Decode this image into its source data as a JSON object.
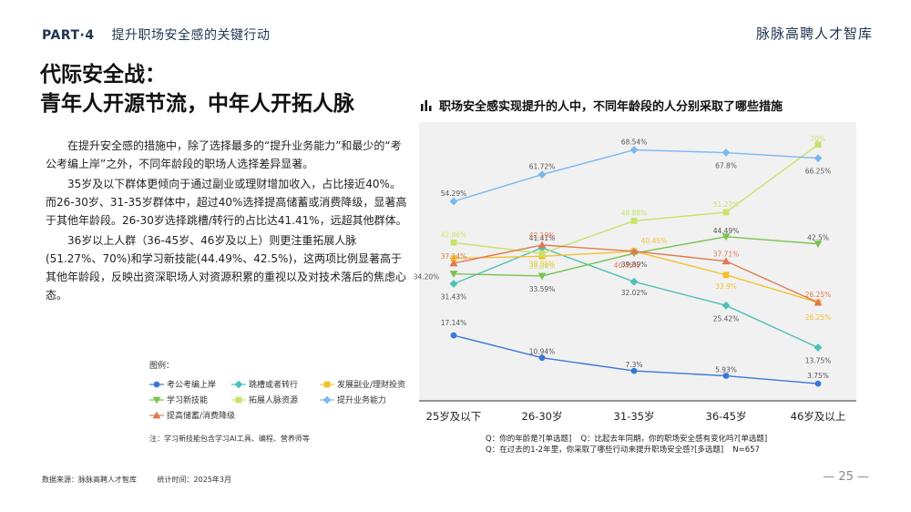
{
  "header": {
    "part": "PART·4",
    "section": "提升职场安全感的关键行动",
    "brand": "脉脉高聘人才智库"
  },
  "title": {
    "line1": "代际安全战：",
    "line2": "青年人开源节流，中年人开拓人脉"
  },
  "body": {
    "p1": "在提升安全感的措施中，除了选择最多的“提升业务能力”和最少的“考公考编上岸”之外，不同年龄段的职场人选择差异显著。",
    "p2": "35岁及以下群体更倾向于通过副业或理财增加收入，占比接近40%。而26-30岁、31-35岁群体中，超过40%选择提高储蓄或消费降级，显著高于其他年龄段。26-30岁选择跳槽/转行的占比达41.41%，远超其他群体。",
    "p3": "36岁以上人群（36-45岁、46岁及以上）则更注重拓展人脉(51.27%、70%)和学习新技能(44.49%、42.5%)，这两项比例显著高于其他年龄段，反映出资深职场人对资源积累的重视以及对技术落后的焦虑心态。"
  },
  "legend": {
    "title": "图例：",
    "note": "注：学习新技能包含学习AI工具、编程、营养师等"
  },
  "chart_heading": "职场安全感实现提升的人中，不同年龄段的人分别采取了哪些措施",
  "chart_data": {
    "type": "line",
    "categories": [
      "25岁及以下",
      "26-30岁",
      "31-35岁",
      "36-45岁",
      "46岁及以上"
    ],
    "ylim": [
      0,
      75
    ],
    "grid": false,
    "legend_position": "bottom-left",
    "series": [
      {
        "name": "考公考编上岸",
        "color": "#3a78d8",
        "marker": "circle",
        "values": [
          17.14,
          10.94,
          7.3,
          5.93,
          3.75
        ],
        "labels": [
          "17.14%",
          "10.94%",
          "7.3%",
          "5.93%",
          "3.75%"
        ]
      },
      {
        "name": "跳槽或者转行",
        "color": "#4fc0b5",
        "marker": "diamond",
        "values": [
          31.43,
          41.41,
          32.02,
          25.42,
          13.75
        ],
        "labels": [
          "31.43%",
          "41.41%",
          "32.02%",
          "25.42%",
          "13.75%"
        ]
      },
      {
        "name": "发展副业/理财投资",
        "color": "#f2c230",
        "marker": "square",
        "values": [
          38.5,
          39.06,
          40.45,
          33.9,
          26.25
        ],
        "labels": [
          "",
          "39.06%",
          "40.45%",
          "33.9%",
          "26.25%"
        ]
      },
      {
        "name": "学习新技能",
        "color": "#78c24e",
        "marker": "tri-down",
        "values": [
          34.2,
          33.59,
          39.89,
          44.49,
          42.5
        ],
        "labels": [
          "34.20%",
          "33.59%",
          "39.89%",
          "44.49%",
          "42.5%"
        ]
      },
      {
        "name": "拓展人脉资源",
        "color": "#c9e26a",
        "marker": "square",
        "values": [
          42.86,
          39.84,
          48.88,
          51.27,
          70
        ],
        "labels": [
          "42.86%",
          "39.84%",
          "48.88%",
          "51.27%",
          "70%"
        ]
      },
      {
        "name": "提升业务能力",
        "color": "#7ab8ee",
        "marker": "diamond",
        "values": [
          54.29,
          61.72,
          68.54,
          67.8,
          66.25
        ],
        "labels": [
          "54.29%",
          "61.72%",
          "68.54%",
          "67.8%",
          "66.25%"
        ]
      },
      {
        "name": "提高储蓄/消费降级",
        "color": "#e07850",
        "marker": "triangle",
        "values": [
          37.14,
          42.19,
          40.45,
          37.71,
          26.25
        ],
        "labels": [
          "37.14%",
          "42.19%",
          "40.45%",
          "37.71%",
          "26.25%"
        ]
      }
    ]
  },
  "notes": {
    "q1": "Q：你的年龄是?[单选题]",
    "q2": "Q：比起去年同期，你的职场安全感有变化吗?[单选题]",
    "q3": "Q：在过去的1-2年里，你采取了哪些行动来提升职场安全感?[多选题]",
    "n": "N=657"
  },
  "footer": {
    "source": "数据来源：脉脉高聘人才智库",
    "time": "统计时间：2025年3月",
    "page": "— 25 —"
  }
}
